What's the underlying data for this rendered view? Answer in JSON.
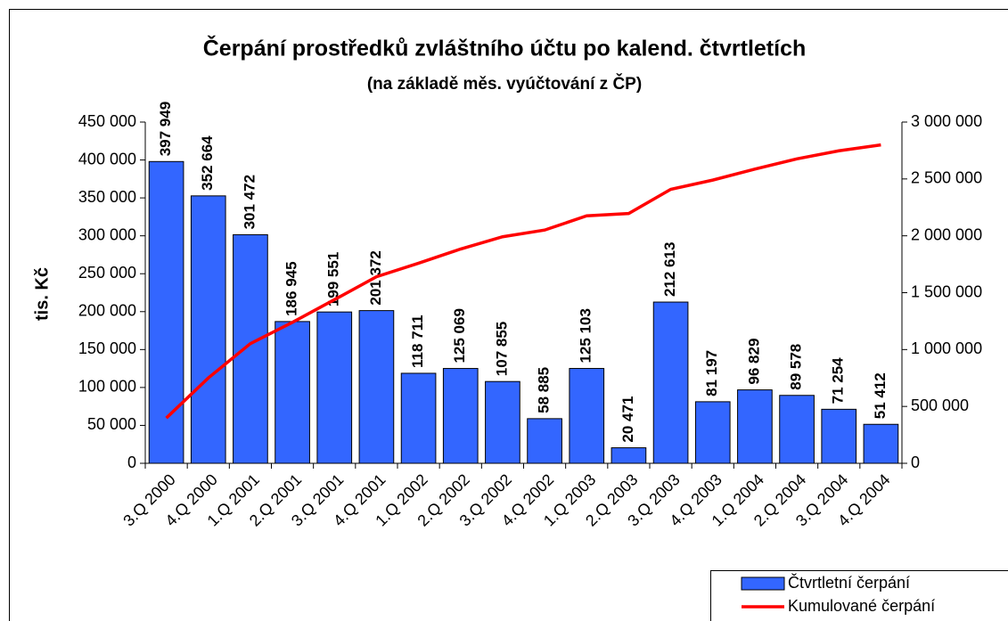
{
  "chart_data": {
    "type": "bar",
    "title": "Čerpání prostředků zvláštního účtu po kalend. čtvrtletích",
    "subtitle": "(na základě měs. vyúčtování z ČP)",
    "ylabel": "tis. Kč",
    "categories": [
      "3.Q 2000",
      "4.Q 2000",
      "1.Q 2001",
      "2.Q 2001",
      "3.Q 2001",
      "4.Q 2001",
      "1.Q 2002",
      "2.Q 2002",
      "3.Q 2002",
      "4.Q 2002",
      "1.Q 2003",
      "2.Q 2003",
      "3.Q 2003",
      "4.Q 2003",
      "1.Q 2004",
      "2.Q 2004",
      "3.Q 2004",
      "4.Q 2004"
    ],
    "series": [
      {
        "name": "Čtvrtletní čerpání",
        "type": "bar",
        "color": "#3366ff",
        "values": [
          397949,
          352664,
          301472,
          186945,
          199551,
          201372,
          118711,
          125069,
          107855,
          58885,
          125103,
          20471,
          212613,
          81197,
          96829,
          89578,
          71254,
          51412
        ],
        "value_labels": [
          "397 949",
          "352 664",
          "301 472",
          "186 945",
          "199 551",
          "201 372",
          "118 711",
          "125 069",
          "107 855",
          "58 885",
          "125 103",
          "20 471",
          "212 613",
          "81 197",
          "96 829",
          "89 578",
          "71 254",
          "51 412"
        ]
      },
      {
        "name": "Kumulované čerpání",
        "type": "line",
        "axis": "y2",
        "color": "#ff0000",
        "values": [
          397949,
          750613,
          1052085,
          1239030,
          1438581,
          1639953,
          1758664,
          1883733,
          1991588,
          2050473,
          2175576,
          2196047,
          2408660,
          2489857,
          2586686,
          2676264,
          2747518,
          2798930
        ]
      }
    ],
    "ylim": [
      0,
      450000
    ],
    "yticks": [
      0,
      {
        "value": 50000,
        "label": "50 000"
      },
      {
        "value": 100000,
        "label": "100 000"
      },
      {
        "value": 150000,
        "label": "150 000"
      },
      {
        "value": 200000,
        "label": "200 000"
      },
      {
        "value": 250000,
        "label": "250 000"
      },
      {
        "value": 300000,
        "label": "300 000"
      },
      {
        "value": 350000,
        "label": "350 000"
      },
      {
        "value": 400000,
        "label": "400 000"
      },
      {
        "value": 450000,
        "label": "450 000"
      }
    ],
    "y2lim": [
      0,
      3000000
    ],
    "y2ticks": [
      0,
      {
        "value": 500000,
        "label": "500 000"
      },
      {
        "value": 1000000,
        "label": "1 000 000"
      },
      {
        "value": 1500000,
        "label": "1 500 000"
      },
      {
        "value": 2000000,
        "label": "2 000 000"
      },
      {
        "value": 2500000,
        "label": "2 500 000"
      },
      {
        "value": 3000000,
        "label": "3 000 000"
      }
    ],
    "legend": "lower right"
  }
}
